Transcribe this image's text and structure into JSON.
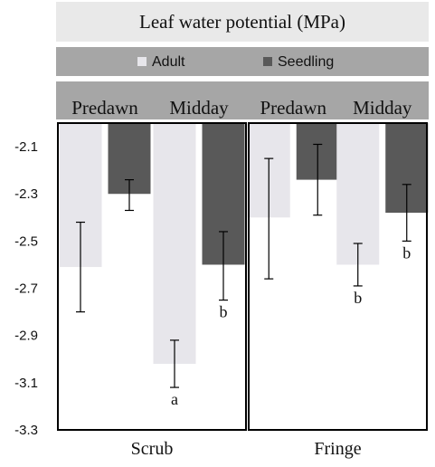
{
  "chart_data": {
    "type": "bar",
    "title": "Leaf water potential (MPa)",
    "legend": {
      "placement": "top",
      "entries": [
        {
          "name": "Adult",
          "color": "#e7e6eb"
        },
        {
          "name": "Seedling",
          "color": "#595959"
        }
      ]
    },
    "ylim": [
      -3.3,
      -2.0
    ],
    "yticks": [
      -2.1,
      -2.3,
      -2.5,
      -2.7,
      -2.9,
      -3.1,
      -3.3
    ],
    "yticklabels": [
      "-2.1",
      "-2.3",
      "-2.5",
      "-2.7",
      "-2.9",
      "-3.1",
      "-3.3"
    ],
    "panels": [
      {
        "name": "Scrub",
        "groups": [
          {
            "label": "Predawn",
            "bars": [
              {
                "series": "Adult",
                "value": -2.61,
                "err_low": -2.8,
                "err_high": -2.42,
                "annotation": ""
              },
              {
                "series": "Seedling",
                "value": -2.3,
                "err_low": -2.37,
                "err_high": -2.24,
                "annotation": ""
              }
            ]
          },
          {
            "label": "Midday",
            "bars": [
              {
                "series": "Adult",
                "value": -3.02,
                "err_low": -3.12,
                "err_high": -2.92,
                "annotation": "a"
              },
              {
                "series": "Seedling",
                "value": -2.6,
                "err_low": -2.75,
                "err_high": -2.46,
                "annotation": "b"
              }
            ]
          }
        ]
      },
      {
        "name": "Fringe",
        "groups": [
          {
            "label": "Predawn",
            "bars": [
              {
                "series": "Adult",
                "value": -2.4,
                "err_low": -2.66,
                "err_high": -2.15,
                "annotation": ""
              },
              {
                "series": "Seedling",
                "value": -2.24,
                "err_low": -2.39,
                "err_high": -2.09,
                "annotation": ""
              }
            ]
          },
          {
            "label": "Midday",
            "bars": [
              {
                "series": "Adult",
                "value": -2.6,
                "err_low": -2.69,
                "err_high": -2.51,
                "annotation": "b"
              },
              {
                "series": "Seedling",
                "value": -2.38,
                "err_low": -2.5,
                "err_high": -2.26,
                "annotation": "b"
              }
            ]
          }
        ]
      }
    ]
  }
}
